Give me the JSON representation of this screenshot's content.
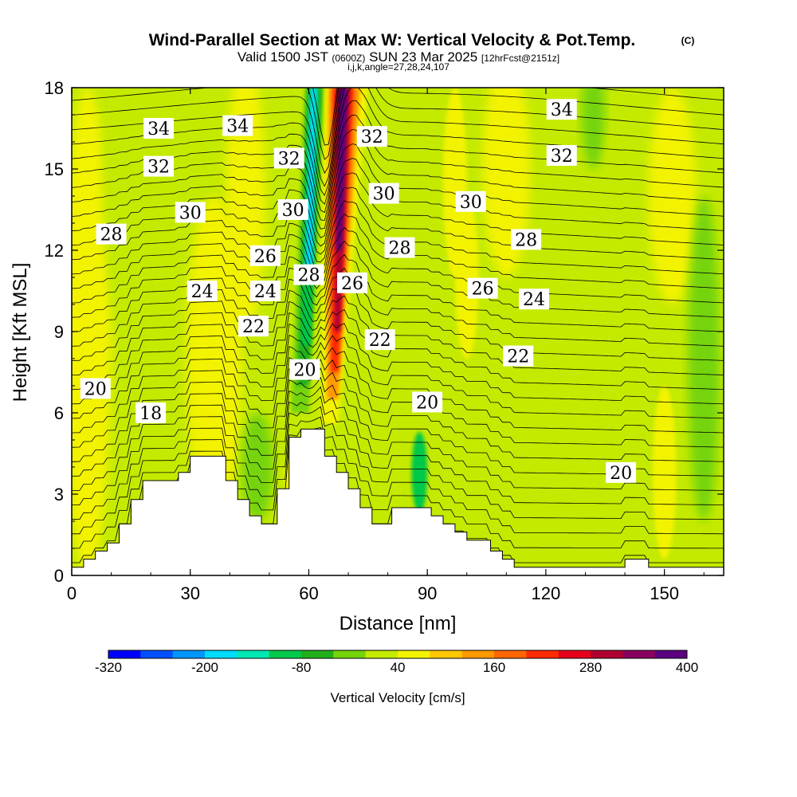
{
  "header": {
    "title": "Wind-Parallel Section at Max W: Vertical Velocity & Pot.Temp.",
    "copyright": "(C)",
    "valid_prefix": "Valid 1500 JST",
    "valid_utc": "(0600Z)",
    "valid_date": "SUN 23 Mar 2025",
    "forecast": "[12hrFcst@2151z]",
    "indices": "i,j,k,angle=27,28,24,107"
  },
  "chart_data": {
    "type": "heatmap",
    "title": "Wind-Parallel Section at Max W: Vertical Velocity & Pot.Temp.",
    "xlabel": "Distance [nm]",
    "ylabel": "Height [Kft MSL]",
    "xlim": [
      0,
      165
    ],
    "ylim": [
      0,
      18
    ],
    "x_ticks": [
      "0",
      "30",
      "60",
      "90",
      "120",
      "150"
    ],
    "y_ticks": [
      "0",
      "3",
      "6",
      "9",
      "12",
      "15",
      "18"
    ],
    "colorbar": {
      "label": "Vertical Velocity [cm/s]",
      "ticks": [
        "-320",
        "-200",
        "-80",
        "40",
        "160",
        "280",
        "400"
      ],
      "min": -320,
      "max": 400,
      "step": 40,
      "colors": [
        "#0000ff",
        "#0050ff",
        "#0096ff",
        "#00ddff",
        "#00e8b4",
        "#00c84a",
        "#22b01a",
        "#74d40a",
        "#c4ea00",
        "#f3f300",
        "#ffc800",
        "#ff9900",
        "#ff6600",
        "#ff2a00",
        "#e6001c",
        "#b00030",
        "#8a005f",
        "#5a0080"
      ]
    },
    "field_levels": {
      "background": 20,
      "downdraft_core": -180,
      "updraft_core": 360
    },
    "isentrope_labels": [
      {
        "text": "34",
        "x": 22,
        "y": 16.5
      },
      {
        "text": "34",
        "x": 42,
        "y": 16.6
      },
      {
        "text": "34",
        "x": 124,
        "y": 17.2
      },
      {
        "text": "32",
        "x": 22,
        "y": 15.1
      },
      {
        "text": "32",
        "x": 55,
        "y": 15.4
      },
      {
        "text": "32",
        "x": 76,
        "y": 16.2
      },
      {
        "text": "32",
        "x": 124,
        "y": 15.5
      },
      {
        "text": "30",
        "x": 30,
        "y": 13.4
      },
      {
        "text": "30",
        "x": 56,
        "y": 13.5
      },
      {
        "text": "30",
        "x": 79,
        "y": 14.1
      },
      {
        "text": "30",
        "x": 101,
        "y": 13.8
      },
      {
        "text": "28",
        "x": 10,
        "y": 12.6
      },
      {
        "text": "28",
        "x": 60,
        "y": 11.1
      },
      {
        "text": "28",
        "x": 83,
        "y": 12.1
      },
      {
        "text": "28",
        "x": 115,
        "y": 12.4
      },
      {
        "text": "26",
        "x": 49,
        "y": 11.8
      },
      {
        "text": "26",
        "x": 71,
        "y": 10.8
      },
      {
        "text": "26",
        "x": 104,
        "y": 10.6
      },
      {
        "text": "24",
        "x": 33,
        "y": 10.5
      },
      {
        "text": "24",
        "x": 49,
        "y": 10.5
      },
      {
        "text": "24",
        "x": 117,
        "y": 10.2
      },
      {
        "text": "22",
        "x": 46,
        "y": 9.2
      },
      {
        "text": "22",
        "x": 78,
        "y": 8.7
      },
      {
        "text": "22",
        "x": 113,
        "y": 8.1
      },
      {
        "text": "20",
        "x": 6,
        "y": 6.9
      },
      {
        "text": "20",
        "x": 59,
        "y": 7.6
      },
      {
        "text": "20",
        "x": 90,
        "y": 6.4
      },
      {
        "text": "20",
        "x": 139,
        "y": 3.8
      },
      {
        "text": "18",
        "x": 20,
        "y": 6.0
      }
    ],
    "terrain": [
      [
        0,
        0.3
      ],
      [
        3,
        0.3
      ],
      [
        3,
        0.6
      ],
      [
        6,
        0.6
      ],
      [
        6,
        0.9
      ],
      [
        9,
        0.9
      ],
      [
        9,
        1.2
      ],
      [
        12,
        1.2
      ],
      [
        12,
        1.9
      ],
      [
        15,
        1.9
      ],
      [
        15,
        2.8
      ],
      [
        18,
        2.8
      ],
      [
        18,
        3.5
      ],
      [
        27,
        3.5
      ],
      [
        27,
        3.8
      ],
      [
        30,
        3.8
      ],
      [
        30,
        4.4
      ],
      [
        39,
        4.4
      ],
      [
        39,
        3.5
      ],
      [
        42,
        3.5
      ],
      [
        42,
        2.8
      ],
      [
        45,
        2.8
      ],
      [
        45,
        2.2
      ],
      [
        48,
        2.2
      ],
      [
        48,
        1.9
      ],
      [
        51,
        1.9
      ],
      [
        51,
        1.9
      ],
      [
        52,
        1.9
      ],
      [
        52,
        3.2
      ],
      [
        55,
        3.2
      ],
      [
        55,
        5.1
      ],
      [
        58,
        5.1
      ],
      [
        58,
        5.4
      ],
      [
        64,
        5.4
      ],
      [
        64,
        4.4
      ],
      [
        67,
        4.4
      ],
      [
        67,
        3.8
      ],
      [
        70,
        3.8
      ],
      [
        70,
        3.2
      ],
      [
        73,
        3.2
      ],
      [
        73,
        2.5
      ],
      [
        76,
        2.5
      ],
      [
        76,
        1.9
      ],
      [
        81,
        1.9
      ],
      [
        81,
        2.5
      ],
      [
        91,
        2.5
      ],
      [
        91,
        2.2
      ],
      [
        94,
        2.2
      ],
      [
        94,
        1.9
      ],
      [
        97,
        1.9
      ],
      [
        97,
        1.6
      ],
      [
        100,
        1.6
      ],
      [
        100,
        1.3
      ],
      [
        106,
        1.3
      ],
      [
        106,
        0.9
      ],
      [
        109,
        0.9
      ],
      [
        109,
        0.6
      ],
      [
        112,
        0.6
      ],
      [
        112,
        0.3
      ],
      [
        140,
        0.3
      ],
      [
        140,
        0.6
      ],
      [
        146,
        0.6
      ],
      [
        146,
        0.3
      ],
      [
        165,
        0.3
      ],
      [
        165,
        0
      ],
      [
        0,
        0
      ]
    ]
  }
}
